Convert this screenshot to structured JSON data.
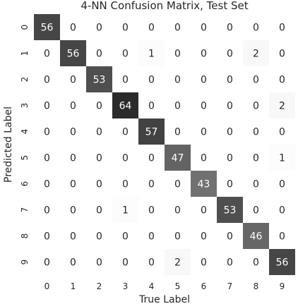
{
  "chart_data": {
    "type": "heatmap",
    "title": "4-NN Confusion Matrix, Test Set",
    "xlabel": "True Label",
    "ylabel": "Predicted Label",
    "x_categories": [
      "0",
      "1",
      "2",
      "3",
      "4",
      "5",
      "6",
      "7",
      "8",
      "9"
    ],
    "y_categories": [
      "0",
      "1",
      "2",
      "3",
      "4",
      "5",
      "6",
      "7",
      "8",
      "9"
    ],
    "values": [
      [
        56,
        0,
        0,
        0,
        0,
        0,
        0,
        0,
        0,
        0
      ],
      [
        0,
        56,
        0,
        0,
        1,
        0,
        0,
        0,
        2,
        0
      ],
      [
        0,
        0,
        53,
        0,
        0,
        0,
        0,
        0,
        0,
        0
      ],
      [
        0,
        0,
        0,
        64,
        0,
        0,
        0,
        0,
        0,
        2
      ],
      [
        0,
        0,
        0,
        0,
        57,
        0,
        0,
        0,
        0,
        0
      ],
      [
        0,
        0,
        0,
        0,
        0,
        47,
        0,
        0,
        0,
        1
      ],
      [
        0,
        0,
        0,
        0,
        0,
        0,
        43,
        0,
        0,
        0
      ],
      [
        0,
        0,
        0,
        1,
        0,
        0,
        0,
        53,
        0,
        0
      ],
      [
        0,
        0,
        0,
        0,
        0,
        0,
        0,
        0,
        46,
        0
      ],
      [
        0,
        0,
        0,
        0,
        0,
        2,
        0,
        0,
        0,
        56
      ]
    ],
    "vmin": 0,
    "vmax": 64,
    "colormap": "white-to-dark",
    "colors": {
      "low": "#ffffff",
      "high": "#2b2b2b",
      "text_on_light": "#262626",
      "text_on_dark": "#ffffff"
    },
    "grid": false,
    "colorbar": false
  }
}
